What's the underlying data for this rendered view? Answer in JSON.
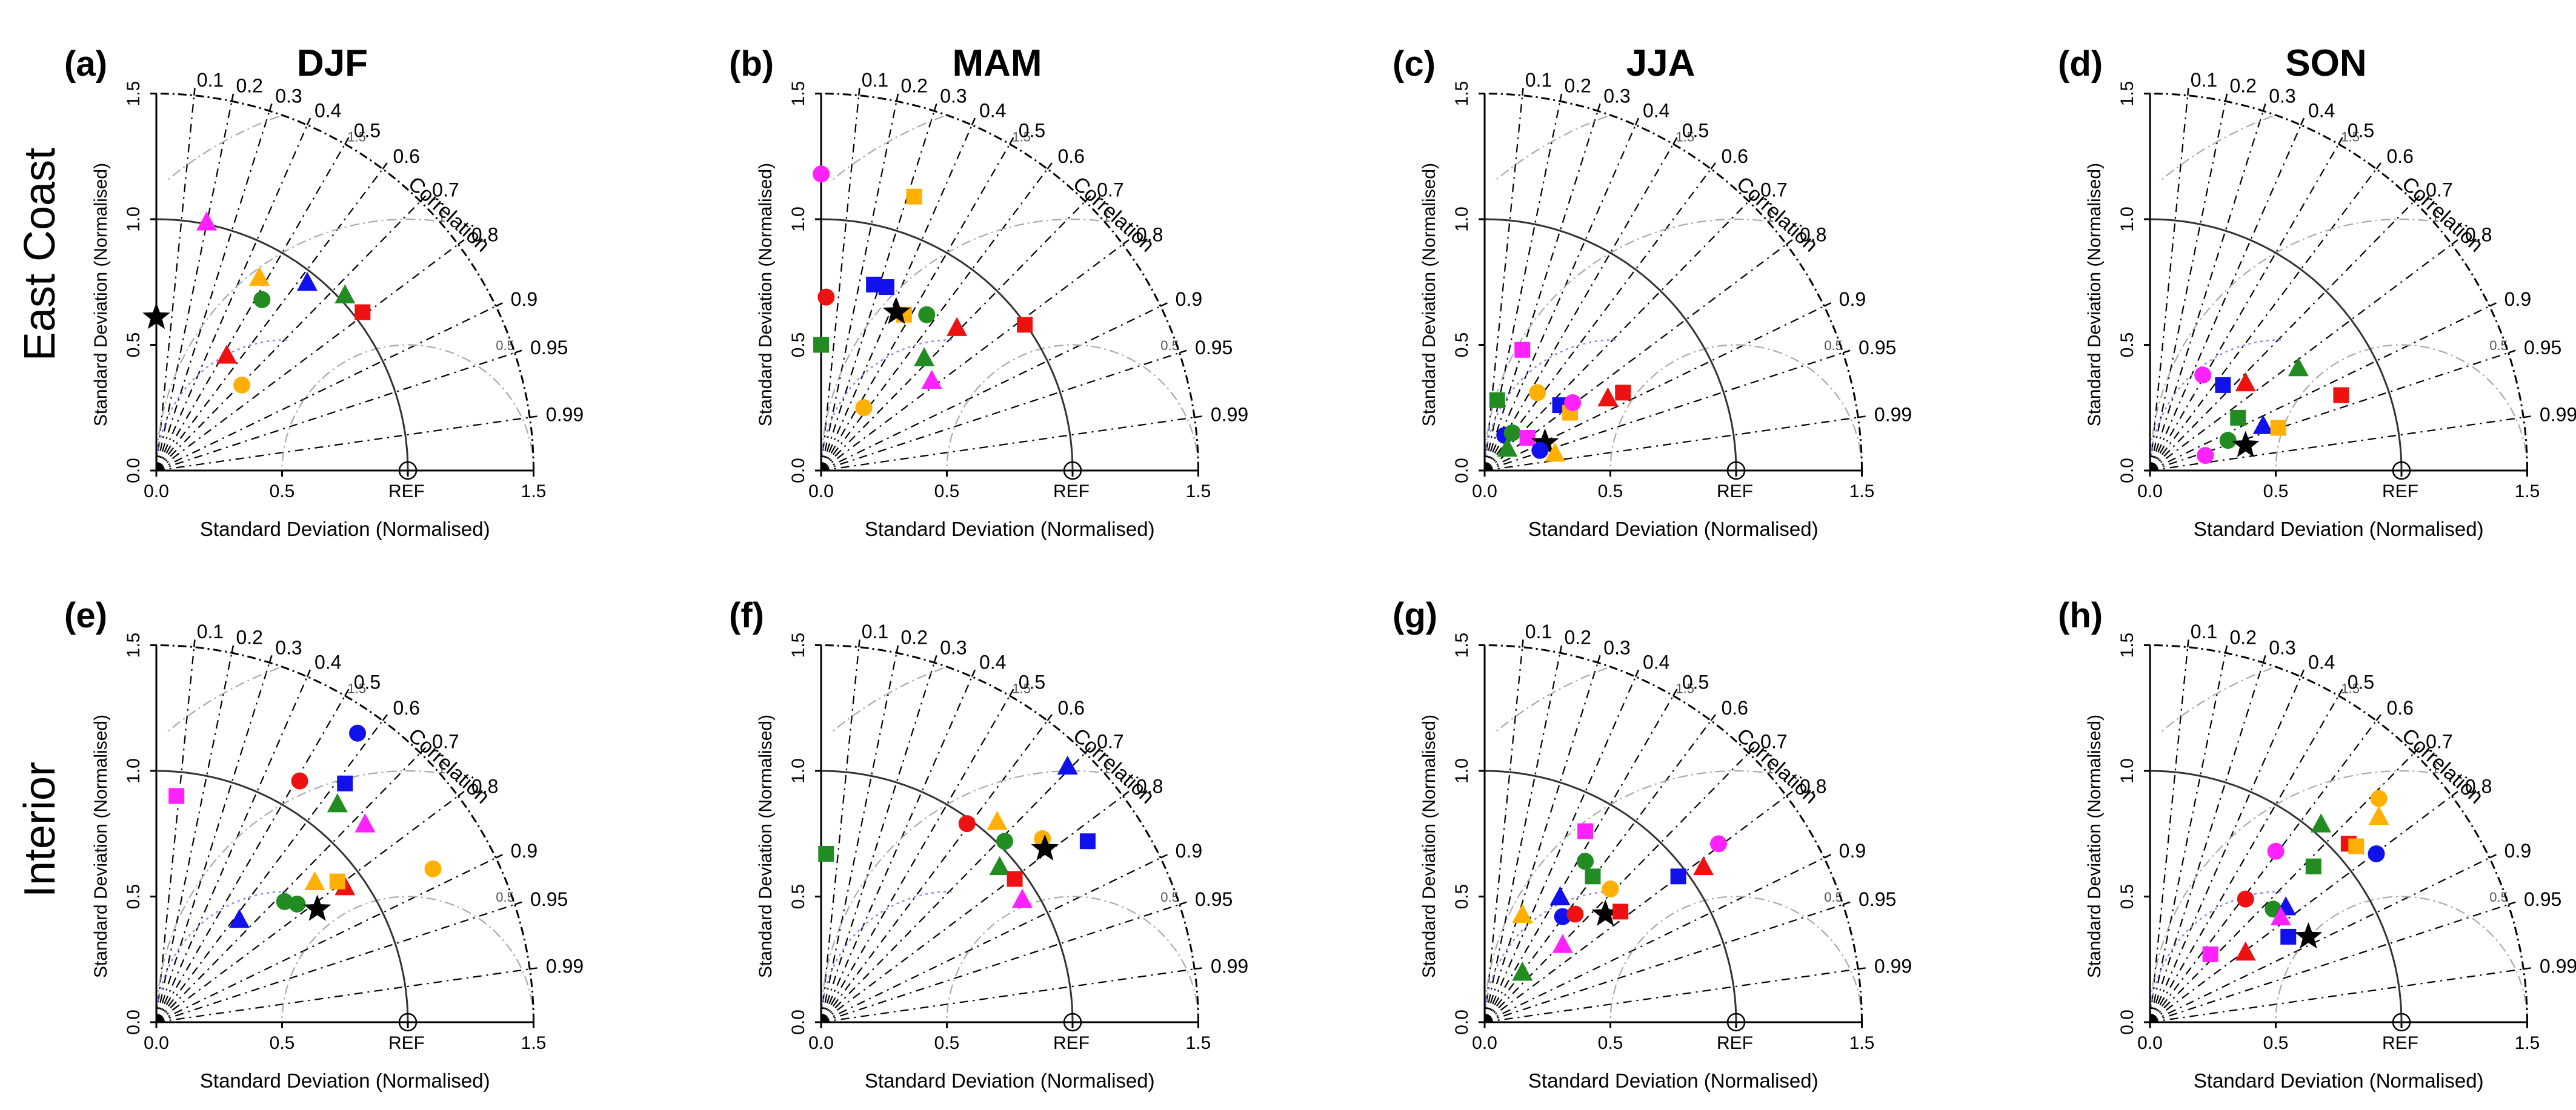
{
  "row_labels": [
    "East Coast",
    "Interior"
  ],
  "colors": {
    "red": "#ee1111",
    "green": "#228b22",
    "blue": "#1111ee",
    "orange": "#ffb000",
    "magenta": "#ff22ff",
    "black": "#000000",
    "grid": "#888888",
    "rms": "#aaaaaa",
    "ref_circle": "#8888ff"
  },
  "chart_data": [
    {
      "type": "scatter",
      "subtype": "taylor_diagram",
      "panel_label": "(a)",
      "title": "DJF",
      "region": "East Coast",
      "xlabel": "Standard Deviation (Normalised)",
      "ylabel": "Standard Deviation (Normalised)",
      "corr_label": "Correlation",
      "ref_label": "REF",
      "axis_ticks": [
        "0.0",
        "0.5",
        "1.0",
        "1.5"
      ],
      "corr_ticks": [
        "0.1",
        "0.2",
        "0.3",
        "0.4",
        "0.5",
        "0.6",
        "0.7",
        "0.8",
        "0.9",
        "0.95",
        "0.99"
      ],
      "rms_ticks": [
        "0.5",
        "1",
        "1.5"
      ],
      "ylim": [
        0,
        1.5
      ],
      "points": [
        {
          "x": 0.0,
          "y": 0.61,
          "marker": "star",
          "color": "black"
        },
        {
          "x": 0.2,
          "y": 0.99,
          "marker": "triangle",
          "color": "magenta"
        },
        {
          "x": 0.41,
          "y": 0.77,
          "marker": "triangle",
          "color": "orange"
        },
        {
          "x": 0.42,
          "y": 0.68,
          "marker": "circle",
          "color": "green"
        },
        {
          "x": 0.6,
          "y": 0.75,
          "marker": "triangle",
          "color": "blue"
        },
        {
          "x": 0.75,
          "y": 0.7,
          "marker": "triangle",
          "color": "green"
        },
        {
          "x": 0.82,
          "y": 0.63,
          "marker": "square",
          "color": "red"
        },
        {
          "x": 0.28,
          "y": 0.46,
          "marker": "triangle",
          "color": "red"
        },
        {
          "x": 0.34,
          "y": 0.34,
          "marker": "circle",
          "color": "orange"
        }
      ]
    },
    {
      "type": "scatter",
      "subtype": "taylor_diagram",
      "panel_label": "(b)",
      "title": "MAM",
      "region": "East Coast",
      "xlabel": "Standard Deviation (Normalised)",
      "ylabel": "Standard Deviation (Normalised)",
      "corr_label": "Correlation",
      "ref_label": "REF",
      "axis_ticks": [
        "0.0",
        "0.5",
        "1.0",
        "1.5"
      ],
      "corr_ticks": [
        "0.1",
        "0.2",
        "0.3",
        "0.4",
        "0.5",
        "0.6",
        "0.7",
        "0.8",
        "0.9",
        "0.95",
        "0.99"
      ],
      "rms_ticks": [
        "0.5",
        "1",
        "1.5"
      ],
      "ylim": [
        0,
        1.5
      ],
      "points": [
        {
          "x": 0.0,
          "y": 1.18,
          "marker": "circle",
          "color": "magenta"
        },
        {
          "x": 0.37,
          "y": 1.09,
          "marker": "square",
          "color": "orange"
        },
        {
          "x": 0.02,
          "y": 0.69,
          "marker": "circle",
          "color": "red"
        },
        {
          "x": 0.0,
          "y": 0.5,
          "marker": "square",
          "color": "green"
        },
        {
          "x": 0.21,
          "y": 0.74,
          "marker": "square",
          "color": "blue"
        },
        {
          "x": 0.26,
          "y": 0.73,
          "marker": "square",
          "color": "blue"
        },
        {
          "x": 0.33,
          "y": 0.62,
          "marker": "square",
          "color": "orange"
        },
        {
          "x": 0.3,
          "y": 0.63,
          "marker": "star",
          "color": "black"
        },
        {
          "x": 0.42,
          "y": 0.62,
          "marker": "circle",
          "color": "green"
        },
        {
          "x": 0.54,
          "y": 0.57,
          "marker": "triangle",
          "color": "red"
        },
        {
          "x": 0.81,
          "y": 0.58,
          "marker": "square",
          "color": "red"
        },
        {
          "x": 0.41,
          "y": 0.45,
          "marker": "triangle",
          "color": "green"
        },
        {
          "x": 0.44,
          "y": 0.36,
          "marker": "triangle",
          "color": "magenta"
        },
        {
          "x": 0.17,
          "y": 0.25,
          "marker": "circle",
          "color": "orange"
        }
      ]
    },
    {
      "type": "scatter",
      "subtype": "taylor_diagram",
      "panel_label": "(c)",
      "title": "JJA",
      "region": "East Coast",
      "xlabel": "Standard Deviation (Normalised)",
      "ylabel": "Standard Deviation (Normalised)",
      "corr_label": "Correlation",
      "ref_label": "REF",
      "axis_ticks": [
        "0.0",
        "0.5",
        "1.0",
        "1.5"
      ],
      "corr_ticks": [
        "0.1",
        "0.2",
        "0.3",
        "0.4",
        "0.5",
        "0.6",
        "0.7",
        "0.8",
        "0.9",
        "0.95",
        "0.99"
      ],
      "rms_ticks": [
        "0.5",
        "1",
        "1.5"
      ],
      "ylim": [
        0,
        1.5
      ],
      "points": [
        {
          "x": 0.15,
          "y": 0.48,
          "marker": "square",
          "color": "magenta"
        },
        {
          "x": 0.05,
          "y": 0.28,
          "marker": "square",
          "color": "green"
        },
        {
          "x": 0.21,
          "y": 0.31,
          "marker": "circle",
          "color": "orange"
        },
        {
          "x": 0.3,
          "y": 0.26,
          "marker": "square",
          "color": "blue"
        },
        {
          "x": 0.34,
          "y": 0.23,
          "marker": "square",
          "color": "orange"
        },
        {
          "x": 0.35,
          "y": 0.27,
          "marker": "circle",
          "color": "magenta"
        },
        {
          "x": 0.49,
          "y": 0.29,
          "marker": "triangle",
          "color": "red"
        },
        {
          "x": 0.55,
          "y": 0.31,
          "marker": "square",
          "color": "red"
        },
        {
          "x": 0.08,
          "y": 0.14,
          "marker": "circle",
          "color": "blue"
        },
        {
          "x": 0.11,
          "y": 0.15,
          "marker": "circle",
          "color": "green"
        },
        {
          "x": 0.09,
          "y": 0.09,
          "marker": "triangle",
          "color": "green"
        },
        {
          "x": 0.17,
          "y": 0.13,
          "marker": "square",
          "color": "magenta"
        },
        {
          "x": 0.24,
          "y": 0.11,
          "marker": "star",
          "color": "black"
        },
        {
          "x": 0.22,
          "y": 0.08,
          "marker": "circle",
          "color": "blue"
        },
        {
          "x": 0.28,
          "y": 0.07,
          "marker": "triangle",
          "color": "orange"
        }
      ]
    },
    {
      "type": "scatter",
      "subtype": "taylor_diagram",
      "panel_label": "(d)",
      "title": "SON",
      "region": "East Coast",
      "xlabel": "Standard Deviation (Normalised)",
      "ylabel": "Standard Deviation (Normalised)",
      "corr_label": "Correlation",
      "ref_label": "REF",
      "axis_ticks": [
        "0.0",
        "0.5",
        "1.0",
        "1.5"
      ],
      "corr_ticks": [
        "0.1",
        "0.2",
        "0.3",
        "0.4",
        "0.5",
        "0.6",
        "0.7",
        "0.8",
        "0.9",
        "0.95",
        "0.99"
      ],
      "rms_ticks": [
        "0.5",
        "1",
        "1.5"
      ],
      "ylim": [
        0,
        1.5
      ],
      "points": [
        {
          "x": 0.21,
          "y": 0.38,
          "marker": "circle",
          "color": "magenta"
        },
        {
          "x": 0.29,
          "y": 0.34,
          "marker": "square",
          "color": "blue"
        },
        {
          "x": 0.38,
          "y": 0.35,
          "marker": "triangle",
          "color": "red"
        },
        {
          "x": 0.59,
          "y": 0.41,
          "marker": "triangle",
          "color": "green"
        },
        {
          "x": 0.76,
          "y": 0.3,
          "marker": "square",
          "color": "red"
        },
        {
          "x": 0.35,
          "y": 0.21,
          "marker": "square",
          "color": "green"
        },
        {
          "x": 0.45,
          "y": 0.18,
          "marker": "triangle",
          "color": "blue"
        },
        {
          "x": 0.51,
          "y": 0.17,
          "marker": "square",
          "color": "orange"
        },
        {
          "x": 0.31,
          "y": 0.12,
          "marker": "circle",
          "color": "green"
        },
        {
          "x": 0.38,
          "y": 0.1,
          "marker": "star",
          "color": "black"
        },
        {
          "x": 0.22,
          "y": 0.06,
          "marker": "circle",
          "color": "magenta"
        }
      ]
    },
    {
      "type": "scatter",
      "subtype": "taylor_diagram",
      "panel_label": "(e)",
      "title": "",
      "region": "Interior",
      "xlabel": "Standard Deviation (Normalised)",
      "ylabel": "Standard Deviation (Normalised)",
      "corr_label": "Correlation",
      "ref_label": "REF",
      "axis_ticks": [
        "0.0",
        "0.5",
        "1.0",
        "1.5"
      ],
      "corr_ticks": [
        "0.1",
        "0.2",
        "0.3",
        "0.4",
        "0.5",
        "0.6",
        "0.7",
        "0.8",
        "0.9",
        "0.95",
        "0.99"
      ],
      "rms_ticks": [
        "0.5",
        "1",
        "1.5"
      ],
      "ylim": [
        0,
        1.5
      ],
      "points": [
        {
          "x": 0.8,
          "y": 1.15,
          "marker": "circle",
          "color": "blue"
        },
        {
          "x": 0.57,
          "y": 0.96,
          "marker": "circle",
          "color": "red"
        },
        {
          "x": 0.75,
          "y": 0.95,
          "marker": "square",
          "color": "blue"
        },
        {
          "x": 0.72,
          "y": 0.87,
          "marker": "triangle",
          "color": "green"
        },
        {
          "x": 0.83,
          "y": 0.79,
          "marker": "triangle",
          "color": "magenta"
        },
        {
          "x": 0.08,
          "y": 0.9,
          "marker": "square",
          "color": "magenta"
        },
        {
          "x": 1.1,
          "y": 0.61,
          "marker": "circle",
          "color": "orange"
        },
        {
          "x": 0.75,
          "y": 0.54,
          "marker": "triangle",
          "color": "red"
        },
        {
          "x": 0.72,
          "y": 0.56,
          "marker": "square",
          "color": "orange"
        },
        {
          "x": 0.63,
          "y": 0.56,
          "marker": "triangle",
          "color": "orange"
        },
        {
          "x": 0.51,
          "y": 0.48,
          "marker": "circle",
          "color": "green"
        },
        {
          "x": 0.56,
          "y": 0.47,
          "marker": "circle",
          "color": "green"
        },
        {
          "x": 0.64,
          "y": 0.45,
          "marker": "star",
          "color": "black"
        },
        {
          "x": 0.33,
          "y": 0.41,
          "marker": "triangle",
          "color": "blue"
        }
      ]
    },
    {
      "type": "scatter",
      "subtype": "taylor_diagram",
      "panel_label": "(f)",
      "title": "",
      "region": "Interior",
      "xlabel": "Standard Deviation (Normalised)",
      "ylabel": "Standard Deviation (Normalised)",
      "corr_label": "Correlation",
      "ref_label": "REF",
      "axis_ticks": [
        "0.0",
        "0.5",
        "1.0",
        "1.5"
      ],
      "corr_ticks": [
        "0.1",
        "0.2",
        "0.3",
        "0.4",
        "0.5",
        "0.6",
        "0.7",
        "0.8",
        "0.9",
        "0.95",
        "0.99"
      ],
      "rms_ticks": [
        "0.5",
        "1",
        "1.5"
      ],
      "ylim": [
        0,
        1.5
      ],
      "points": [
        {
          "x": 0.98,
          "y": 1.02,
          "marker": "triangle",
          "color": "blue"
        },
        {
          "x": 0.58,
          "y": 0.79,
          "marker": "circle",
          "color": "red"
        },
        {
          "x": 0.7,
          "y": 0.8,
          "marker": "triangle",
          "color": "orange"
        },
        {
          "x": 0.88,
          "y": 0.73,
          "marker": "circle",
          "color": "orange"
        },
        {
          "x": 0.73,
          "y": 0.72,
          "marker": "circle",
          "color": "green"
        },
        {
          "x": 1.06,
          "y": 0.72,
          "marker": "square",
          "color": "blue"
        },
        {
          "x": 0.89,
          "y": 0.69,
          "marker": "star",
          "color": "black"
        },
        {
          "x": 0.71,
          "y": 0.62,
          "marker": "triangle",
          "color": "green"
        },
        {
          "x": 0.77,
          "y": 0.57,
          "marker": "square",
          "color": "red"
        },
        {
          "x": 0.8,
          "y": 0.49,
          "marker": "triangle",
          "color": "magenta"
        },
        {
          "x": 0.02,
          "y": 0.67,
          "marker": "square",
          "color": "green"
        }
      ]
    },
    {
      "type": "scatter",
      "subtype": "taylor_diagram",
      "panel_label": "(g)",
      "title": "",
      "region": "Interior",
      "xlabel": "Standard Deviation (Normalised)",
      "ylabel": "Standard Deviation (Normalised)",
      "corr_label": "Correlation",
      "ref_label": "REF",
      "axis_ticks": [
        "0.0",
        "0.5",
        "1.0",
        "1.5"
      ],
      "corr_ticks": [
        "0.1",
        "0.2",
        "0.3",
        "0.4",
        "0.5",
        "0.6",
        "0.7",
        "0.8",
        "0.9",
        "0.95",
        "0.99"
      ],
      "rms_ticks": [
        "0.5",
        "1",
        "1.5"
      ],
      "ylim": [
        0,
        1.5
      ],
      "points": [
        {
          "x": 0.4,
          "y": 0.76,
          "marker": "square",
          "color": "magenta"
        },
        {
          "x": 0.93,
          "y": 0.71,
          "marker": "circle",
          "color": "magenta"
        },
        {
          "x": 0.4,
          "y": 0.64,
          "marker": "circle",
          "color": "green"
        },
        {
          "x": 0.43,
          "y": 0.58,
          "marker": "square",
          "color": "green"
        },
        {
          "x": 0.87,
          "y": 0.62,
          "marker": "triangle",
          "color": "red"
        },
        {
          "x": 0.77,
          "y": 0.58,
          "marker": "square",
          "color": "blue"
        },
        {
          "x": 0.5,
          "y": 0.53,
          "marker": "circle",
          "color": "orange"
        },
        {
          "x": 0.3,
          "y": 0.5,
          "marker": "triangle",
          "color": "blue"
        },
        {
          "x": 0.31,
          "y": 0.42,
          "marker": "circle",
          "color": "blue"
        },
        {
          "x": 0.36,
          "y": 0.43,
          "marker": "circle",
          "color": "red"
        },
        {
          "x": 0.15,
          "y": 0.43,
          "marker": "triangle",
          "color": "orange"
        },
        {
          "x": 0.48,
          "y": 0.43,
          "marker": "star",
          "color": "black"
        },
        {
          "x": 0.54,
          "y": 0.44,
          "marker": "square",
          "color": "red"
        },
        {
          "x": 0.31,
          "y": 0.31,
          "marker": "triangle",
          "color": "magenta"
        },
        {
          "x": 0.15,
          "y": 0.2,
          "marker": "triangle",
          "color": "green"
        }
      ]
    },
    {
      "type": "scatter",
      "subtype": "taylor_diagram",
      "panel_label": "(h)",
      "title": "",
      "region": "Interior",
      "xlabel": "Standard Deviation (Normalised)",
      "ylabel": "Standard Deviation (Normalised)",
      "corr_label": "Correlation",
      "ref_label": "REF",
      "axis_ticks": [
        "0.0",
        "0.5",
        "1.0",
        "1.5"
      ],
      "corr_ticks": [
        "0.1",
        "0.2",
        "0.3",
        "0.4",
        "0.5",
        "0.6",
        "0.7",
        "0.8",
        "0.9",
        "0.95",
        "0.99"
      ],
      "rms_ticks": [
        "0.5",
        "1",
        "1.5"
      ],
      "ylim": [
        0,
        1.5
      ],
      "points": [
        {
          "x": 0.91,
          "y": 0.89,
          "marker": "circle",
          "color": "orange"
        },
        {
          "x": 0.91,
          "y": 0.82,
          "marker": "triangle",
          "color": "orange"
        },
        {
          "x": 0.68,
          "y": 0.79,
          "marker": "triangle",
          "color": "green"
        },
        {
          "x": 0.79,
          "y": 0.71,
          "marker": "square",
          "color": "red"
        },
        {
          "x": 0.82,
          "y": 0.7,
          "marker": "square",
          "color": "orange"
        },
        {
          "x": 0.9,
          "y": 0.67,
          "marker": "circle",
          "color": "blue"
        },
        {
          "x": 0.65,
          "y": 0.62,
          "marker": "square",
          "color": "green"
        },
        {
          "x": 0.5,
          "y": 0.68,
          "marker": "circle",
          "color": "magenta"
        },
        {
          "x": 0.38,
          "y": 0.49,
          "marker": "circle",
          "color": "red"
        },
        {
          "x": 0.49,
          "y": 0.45,
          "marker": "circle",
          "color": "green"
        },
        {
          "x": 0.54,
          "y": 0.46,
          "marker": "triangle",
          "color": "blue"
        },
        {
          "x": 0.52,
          "y": 0.42,
          "marker": "triangle",
          "color": "magenta"
        },
        {
          "x": 0.55,
          "y": 0.34,
          "marker": "square",
          "color": "blue"
        },
        {
          "x": 0.63,
          "y": 0.34,
          "marker": "star",
          "color": "black"
        },
        {
          "x": 0.38,
          "y": 0.28,
          "marker": "triangle",
          "color": "red"
        },
        {
          "x": 0.24,
          "y": 0.27,
          "marker": "square",
          "color": "magenta"
        }
      ]
    }
  ]
}
